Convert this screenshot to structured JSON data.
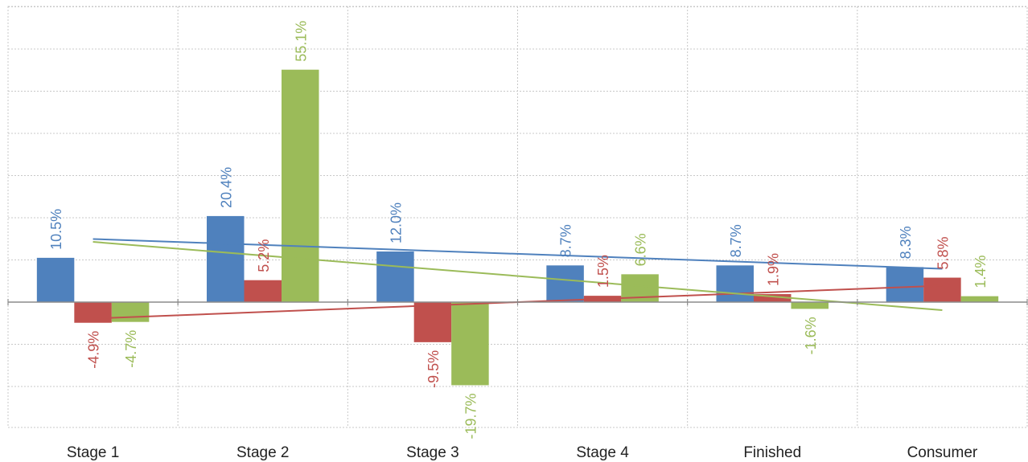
{
  "chart_data": {
    "type": "bar",
    "categories": [
      "Stage 1",
      "Stage 2",
      "Stage 3",
      "Stage 4",
      "Finished",
      "Consumer"
    ],
    "series": [
      {
        "color": "#4f81bd",
        "values": [
          10.5,
          20.4,
          12.0,
          8.7,
          8.7,
          8.3
        ],
        "labels": [
          "10.5%",
          "20.4%",
          "12.0%",
          "8.7%",
          "8.7%",
          "8.3%"
        ]
      },
      {
        "color": "#c0504d",
        "values": [
          -4.9,
          5.2,
          -9.5,
          1.5,
          1.9,
          5.8
        ],
        "labels": [
          "-4.9%",
          "5.2%",
          "-9.5%",
          "1.5%",
          "1.9%",
          "5.8%"
        ]
      },
      {
        "color": "#9bbb59",
        "values": [
          -4.7,
          55.1,
          -19.7,
          6.6,
          -1.6,
          1.4
        ],
        "labels": [
          "-4.7%",
          "55.1%",
          "-19.7%",
          "6.6%",
          "-1.6%",
          "1.4%"
        ]
      }
    ],
    "trendlines": "linear trendline per series",
    "ylim": [
      -30,
      70
    ],
    "grid": true,
    "legend": "none",
    "title": "",
    "xlabel": "",
    "ylabel": ""
  }
}
